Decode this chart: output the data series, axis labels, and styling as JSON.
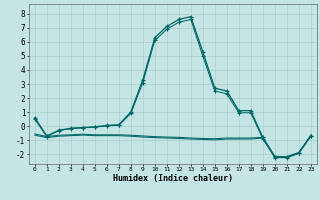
{
  "xlabel": "Humidex (Indice chaleur)",
  "xlim": [
    -0.5,
    23.5
  ],
  "ylim": [
    -2.7,
    8.7
  ],
  "yticks": [
    -2,
    -1,
    0,
    1,
    2,
    3,
    4,
    5,
    6,
    7,
    8
  ],
  "xticks": [
    0,
    1,
    2,
    3,
    4,
    5,
    6,
    7,
    8,
    9,
    10,
    11,
    12,
    13,
    14,
    15,
    16,
    17,
    18,
    19,
    20,
    21,
    22,
    23
  ],
  "bg_color": "#c5e5e5",
  "grid_color": "#aacece",
  "line_color": "#006666",
  "line1": [
    0.6,
    -0.7,
    -0.3,
    -0.15,
    -0.1,
    -0.05,
    0.05,
    0.1,
    1.0,
    3.3,
    6.3,
    7.1,
    7.6,
    7.8,
    5.3,
    2.7,
    2.5,
    1.1,
    1.1,
    -0.8,
    -2.2,
    -2.2,
    -1.9,
    -0.7
  ],
  "line2": [
    0.5,
    -0.75,
    -0.32,
    -0.18,
    -0.12,
    -0.08,
    0.02,
    0.05,
    0.9,
    3.1,
    6.1,
    6.9,
    7.4,
    7.6,
    5.0,
    2.5,
    2.3,
    0.95,
    0.95,
    -0.9,
    -2.25,
    -2.25,
    -1.95,
    -0.72
  ],
  "line3": [
    -0.55,
    -0.75,
    -0.65,
    -0.62,
    -0.58,
    -0.62,
    -0.62,
    -0.62,
    -0.65,
    -0.7,
    -0.75,
    -0.78,
    -0.8,
    -0.85,
    -0.88,
    -0.9,
    -0.85,
    -0.85,
    -0.85,
    -0.8,
    -2.15,
    -2.18,
    -1.88,
    -0.65
  ],
  "line4": [
    -0.65,
    -0.82,
    -0.72,
    -0.68,
    -0.64,
    -0.68,
    -0.68,
    -0.68,
    -0.72,
    -0.78,
    -0.82,
    -0.85,
    -0.88,
    -0.92,
    -0.95,
    -0.98,
    -0.92,
    -0.92,
    -0.92,
    -0.85,
    -2.2,
    -2.22,
    -1.92,
    -0.7
  ]
}
